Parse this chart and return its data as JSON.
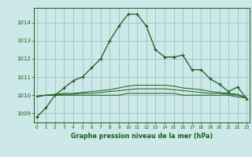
{
  "title": "Graphe pression niveau de la mer (hPa)",
  "background_color": "#cde8e8",
  "grid_color": "#a0c8c8",
  "line_color": "#1a5c1a",
  "x_ticks": [
    0,
    1,
    2,
    3,
    4,
    5,
    6,
    7,
    8,
    9,
    10,
    11,
    12,
    13,
    14,
    15,
    16,
    17,
    18,
    19,
    20,
    21,
    22,
    23
  ],
  "y_ticks": [
    1009,
    1010,
    1011,
    1012,
    1013,
    1014
  ],
  "ylim": [
    1008.5,
    1014.8
  ],
  "xlim": [
    -0.3,
    23.3
  ],
  "series1": [
    1008.8,
    1009.3,
    1010.0,
    1010.4,
    1010.8,
    1011.0,
    1011.5,
    1012.0,
    1013.0,
    1013.8,
    1014.45,
    1014.45,
    1013.8,
    1012.5,
    1012.1,
    1012.1,
    1012.2,
    1011.4,
    1011.4,
    1010.9,
    1010.6,
    1010.2,
    1010.45,
    1009.8
  ],
  "series2": [
    1009.9,
    1010.0,
    1010.0,
    1010.0,
    1010.0,
    1010.0,
    1010.0,
    1010.0,
    1010.0,
    1010.0,
    1010.1,
    1010.1,
    1010.1,
    1010.1,
    1010.1,
    1010.1,
    1010.0,
    1010.0,
    1010.0,
    1010.0,
    1010.0,
    1010.0,
    1009.9,
    1009.85
  ],
  "series3": [
    1009.95,
    1010.0,
    1010.0,
    1010.05,
    1010.05,
    1010.1,
    1010.1,
    1010.15,
    1010.2,
    1010.25,
    1010.3,
    1010.35,
    1010.35,
    1010.35,
    1010.35,
    1010.3,
    1010.25,
    1010.2,
    1010.15,
    1010.1,
    1010.1,
    1010.05,
    1010.0,
    1009.85
  ],
  "series4": [
    1009.95,
    1010.0,
    1010.05,
    1010.1,
    1010.1,
    1010.15,
    1010.2,
    1010.25,
    1010.3,
    1010.4,
    1010.5,
    1010.55,
    1010.55,
    1010.55,
    1010.55,
    1010.5,
    1010.4,
    1010.35,
    1010.3,
    1010.2,
    1010.15,
    1010.1,
    1010.05,
    1009.85
  ]
}
